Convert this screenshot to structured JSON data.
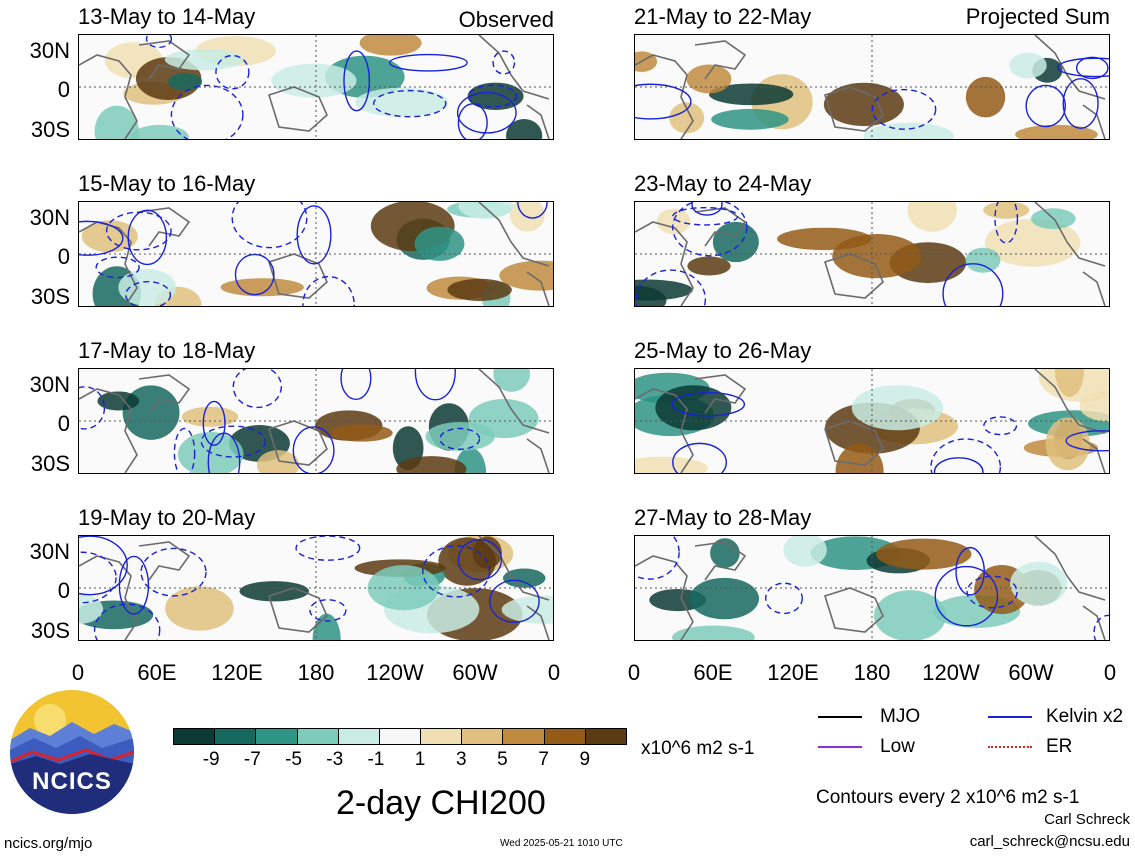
{
  "chart_data": {
    "type": "heatmap",
    "title": "2-day CHI200",
    "units": "x10^6 m2 s-1",
    "contour_note": "Contours every 2 x10^6 m2 s-1",
    "x_ticks": [
      "0",
      "60E",
      "120E",
      "180",
      "120W",
      "60W",
      "0"
    ],
    "y_ticks": [
      "30N",
      "0",
      "30S"
    ],
    "colorbar": {
      "labels": [
        "-9",
        "-7",
        "-5",
        "-3",
        "-1",
        "1",
        "3",
        "5",
        "7",
        "9"
      ],
      "colors": [
        "#0d3a34",
        "#17695f",
        "#2e9484",
        "#7ccbbb",
        "#c9ece4",
        "#f7f7f7",
        "#f0dfb3",
        "#dfc07e",
        "#c08b3e",
        "#935a18",
        "#5c3a12"
      ]
    },
    "legend": [
      {
        "label": "MJO",
        "color": "#000000"
      },
      {
        "label": "Kelvin x2",
        "color": "#1a22d6"
      },
      {
        "label": "Low",
        "color": "#8e2ed8"
      },
      {
        "label": "ER",
        "color": "#e8201c"
      }
    ],
    "left_column_tag": "Observed",
    "right_column_tag": "Projected Sum",
    "panels": [
      {
        "title": "13-May to 14-May",
        "column": "observed"
      },
      {
        "title": "15-May to 16-May",
        "column": "observed"
      },
      {
        "title": "17-May to 18-May",
        "column": "observed"
      },
      {
        "title": "19-May to 20-May",
        "column": "observed"
      },
      {
        "title": "21-May to 22-May",
        "column": "projected"
      },
      {
        "title": "23-May to 24-May",
        "column": "projected"
      },
      {
        "title": "25-May to 26-May",
        "column": "projected"
      },
      {
        "title": "27-May to 28-May",
        "column": "projected"
      }
    ]
  },
  "footer": {
    "logo_text": "NCICS",
    "site": "ncics.org/mjo",
    "timestamp": "Wed 2025-05-21 1010 UTC",
    "author": "Carl Schreck",
    "email": "carl_schreck@ncsu.edu"
  }
}
